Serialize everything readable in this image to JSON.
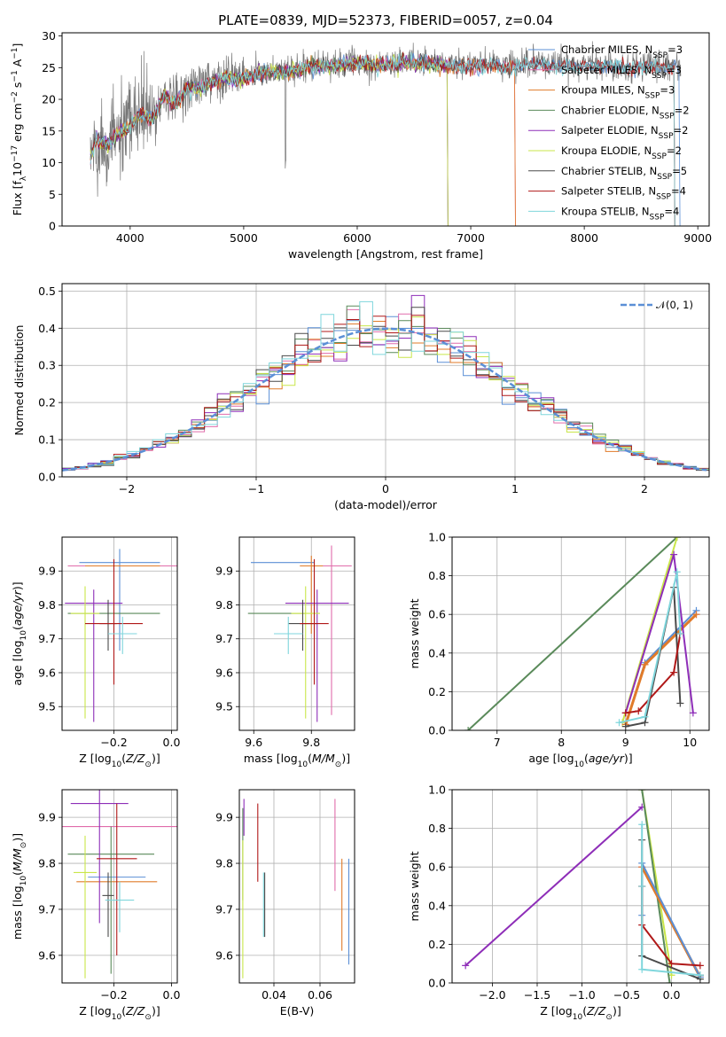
{
  "figure": {
    "title": "PLATE=0839, MJD=52373, FIBERID=0057, z=0.04"
  },
  "colors": {
    "chabrier_miles": "#5b8fd6",
    "salpeter_miles": "#e06cab",
    "kroupa_miles": "#e07b2a",
    "chabrier_elodie": "#5a8a5a",
    "salpeter_elodie": "#8e2eb8",
    "kroupa_elodie": "#c9e64a",
    "chabrier_stelib": "#4a4a4a",
    "salpeter_stelib": "#b01818",
    "kroupa_stelib": "#7fd6dc",
    "normal_curve": "#5b8fd6"
  },
  "chart_data": [
    {
      "id": "spectrum",
      "type": "line",
      "title": "PLATE=0839, MJD=52373, FIBERID=0057, z=0.04",
      "xlabel": "wavelength [Angstrom, rest frame]",
      "ylabel": "Flux [f_λ 10^-17 erg cm^-2 s^-1 A^-1]",
      "xlim": [
        3400,
        9100
      ],
      "ylim": [
        0,
        30.5
      ],
      "xticks": [
        4000,
        5000,
        6000,
        7000,
        8000,
        9000
      ],
      "yticks": [
        0,
        5,
        10,
        15,
        20,
        25,
        30
      ],
      "grid": false,
      "legend_position": "right",
      "data_continuum": {
        "x": [
          3650,
          3700,
          3800,
          3900,
          4000,
          4100,
          4200,
          4300,
          4400,
          4500,
          4600,
          4800,
          5000,
          5200,
          5400,
          5600,
          5800,
          6000,
          6200,
          6400,
          6600,
          6800,
          7000,
          7200,
          7400,
          7600,
          7800,
          8000,
          8200,
          8400,
          8600,
          8800
        ],
        "y": [
          11,
          14,
          13,
          15,
          16,
          18,
          17,
          21,
          19.5,
          22,
          22,
          23.5,
          23.5,
          24.5,
          24.5,
          25.5,
          25.5,
          26,
          25.5,
          26,
          26,
          25.5,
          25.5,
          25.5,
          25.3,
          25.8,
          25.5,
          25.5,
          25.5,
          25.2,
          25.5,
          25.3
        ]
      },
      "series": [
        {
          "name": "Chabrier MILES, N_SSP=3",
          "color_key": "chabrier_miles",
          "x_end": 8850
        },
        {
          "name": "Salpeter MILES, N_SSP=3",
          "color_key": "salpeter_miles",
          "x_end": 7400
        },
        {
          "name": "Kroupa MILES, N_SSP=3",
          "color_key": "kroupa_miles",
          "x_end": 7400
        },
        {
          "name": "Chabrier ELODIE, N_SSP=2",
          "color_key": "chabrier_elodie",
          "x_end": 6800
        },
        {
          "name": "Salpeter ELODIE, N_SSP=2",
          "color_key": "salpeter_elodie",
          "x_end": 6800
        },
        {
          "name": "Kroupa ELODIE, N_SSP=2",
          "color_key": "kroupa_elodie",
          "x_end": 6800
        },
        {
          "name": "Chabrier STELIB, N_SSP=5",
          "color_key": "chabrier_stelib",
          "x_end": 8800
        },
        {
          "name": "Salpeter STELIB, N_SSP=4",
          "color_key": "salpeter_stelib",
          "x_end": 8800
        },
        {
          "name": "Kroupa STELIB, N_SSP=4",
          "color_key": "kroupa_stelib",
          "x_end": 8800
        }
      ]
    },
    {
      "id": "residuals",
      "type": "line",
      "xlabel": "(data-model)/error",
      "ylabel": "Normed distribution",
      "xlim": [
        -2.5,
        2.5
      ],
      "ylim": [
        0,
        0.52
      ],
      "xticks": [
        -2,
        -1,
        0,
        1,
        2
      ],
      "yticks": [
        0.0,
        0.1,
        0.2,
        0.3,
        0.4,
        0.5
      ],
      "grid": true,
      "legend_position": "top-right",
      "legend_label": "𝒩(0, 1)",
      "bin_width": 0.1
    },
    {
      "id": "age_vs_z",
      "type": "scatter",
      "xlabel": "Z [log10(Z/Z⊙)]",
      "ylabel": "age [log10(age/yr)]",
      "xlim": [
        -0.38,
        0.02
      ],
      "ylim": [
        9.43,
        10.0
      ],
      "xticks": [
        -0.2,
        0.0
      ],
      "yticks": [
        9.5,
        9.6,
        9.7,
        9.8,
        9.9
      ],
      "grid": true,
      "points": [
        {
          "color_key": "chabrier_miles",
          "x": -0.18,
          "y": 9.925,
          "xerr": 0.14,
          "yerr": [
            0.26,
            0.04
          ]
        },
        {
          "color_key": "salpeter_miles",
          "x": -0.16,
          "y": 9.915,
          "xerr": 0.2,
          "yerr": [
            0.0,
            0.0
          ]
        },
        {
          "color_key": "kroupa_miles",
          "x": -0.17,
          "y": 9.915,
          "xerr": 0.13,
          "yerr": [
            0.0,
            0.0
          ]
        },
        {
          "color_key": "chabrier_elodie",
          "x": -0.2,
          "y": 9.775,
          "xerr": 0.16,
          "yerr": [
            0.0,
            0.0
          ]
        },
        {
          "color_key": "salpeter_elodie",
          "x": -0.27,
          "y": 9.805,
          "xerr": 0.1,
          "yerr": [
            0.35,
            0.04
          ]
        },
        {
          "color_key": "kroupa_elodie",
          "x": -0.3,
          "y": 9.775,
          "xerr": 0.05,
          "yerr": [
            0.31,
            0.08
          ]
        },
        {
          "color_key": "chabrier_stelib",
          "x": -0.22,
          "y": 9.745,
          "xerr": 0.03,
          "yerr": [
            0.08,
            0.07
          ]
        },
        {
          "color_key": "salpeter_stelib",
          "x": -0.2,
          "y": 9.745,
          "xerr": 0.1,
          "yerr": [
            0.18,
            0.19
          ]
        },
        {
          "color_key": "kroupa_stelib",
          "x": -0.17,
          "y": 9.715,
          "xerr": 0.05,
          "yerr": [
            0.06,
            0.05
          ]
        }
      ]
    },
    {
      "id": "age_vs_mass",
      "type": "scatter",
      "xlabel": "mass [log10(M/M⊙)]",
      "ylabel": "",
      "xlim": [
        9.55,
        9.95
      ],
      "ylim": [
        9.43,
        10.0
      ],
      "xticks": [
        9.6,
        9.8
      ],
      "yticks": [
        9.5,
        9.6,
        9.7,
        9.8,
        9.9
      ],
      "grid": true,
      "points": [
        {
          "color_key": "chabrier_miles",
          "x": 9.7,
          "y": 9.925,
          "xerr": 0.11,
          "yerr": [
            0.0,
            0.0
          ]
        },
        {
          "color_key": "salpeter_miles",
          "x": 9.87,
          "y": 9.915,
          "xerr": 0.07,
          "yerr": [
            0.44,
            0.06
          ]
        },
        {
          "color_key": "kroupa_miles",
          "x": 9.8,
          "y": 9.915,
          "xerr": 0.04,
          "yerr": [
            0.2,
            0.03
          ]
        },
        {
          "color_key": "chabrier_elodie",
          "x": 9.68,
          "y": 9.775,
          "xerr": 0.1,
          "yerr": [
            0.0,
            0.0
          ]
        },
        {
          "color_key": "salpeter_elodie",
          "x": 9.82,
          "y": 9.805,
          "xerr": 0.11,
          "yerr": [
            0.35,
            0.04
          ]
        },
        {
          "color_key": "kroupa_elodie",
          "x": 9.78,
          "y": 9.775,
          "xerr": 0.05,
          "yerr": [
            0.31,
            0.08
          ]
        },
        {
          "color_key": "chabrier_stelib",
          "x": 9.77,
          "y": 9.745,
          "xerr": 0.05,
          "yerr": [
            0.08,
            0.07
          ]
        },
        {
          "color_key": "salpeter_stelib",
          "x": 9.81,
          "y": 9.745,
          "xerr": 0.05,
          "yerr": [
            0.18,
            0.19
          ]
        },
        {
          "color_key": "kroupa_stelib",
          "x": 9.72,
          "y": 9.715,
          "xerr": 0.05,
          "yerr": [
            0.06,
            0.05
          ]
        }
      ]
    },
    {
      "id": "weight_vs_age",
      "type": "line",
      "xlabel": "age [log10(age/yr)]",
      "ylabel": "mass weight",
      "xlim": [
        6.3,
        10.3
      ],
      "ylim": [
        0,
        1.0
      ],
      "xticks": [
        7,
        8,
        9,
        10
      ],
      "yticks": [
        0.0,
        0.2,
        0.4,
        0.6,
        0.8,
        1.0
      ],
      "grid": true,
      "series": [
        {
          "color_key": "chabrier_elodie",
          "x": [
            6.55,
            9.8
          ],
          "y": [
            0.0,
            1.0
          ],
          "width": 2
        },
        {
          "color_key": "kroupa_elodie",
          "x": [
            8.95,
            9.8
          ],
          "y": [
            0.04,
            1.0
          ],
          "width": 2
        },
        {
          "color_key": "chabrier_miles",
          "x": [
            9.0,
            9.3,
            10.1
          ],
          "y": [
            0.03,
            0.35,
            0.62
          ],
          "width": 2
        },
        {
          "color_key": "salpeter_miles",
          "x": [
            9.0,
            9.3,
            10.1
          ],
          "y": [
            0.03,
            0.34,
            0.6
          ],
          "width": 2
        },
        {
          "color_key": "kroupa_miles",
          "x": [
            9.0,
            9.3,
            10.1
          ],
          "y": [
            0.03,
            0.34,
            0.6
          ],
          "width": 3
        },
        {
          "color_key": "salpeter_elodie",
          "x": [
            9.0,
            9.75,
            10.05
          ],
          "y": [
            0.09,
            0.91,
            0.09
          ],
          "width": 2
        },
        {
          "color_key": "chabrier_stelib",
          "x": [
            9.0,
            9.3,
            9.75,
            9.85
          ],
          "y": [
            0.02,
            0.04,
            0.74,
            0.14
          ],
          "width": 2
        },
        {
          "color_key": "salpeter_stelib",
          "x": [
            9.0,
            9.2,
            9.75,
            9.85
          ],
          "y": [
            0.09,
            0.1,
            0.3,
            0.5
          ],
          "width": 2
        },
        {
          "color_key": "kroupa_stelib",
          "x": [
            8.9,
            9.3,
            9.8,
            9.85
          ],
          "y": [
            0.04,
            0.07,
            0.82,
            0.5
          ],
          "width": 2
        }
      ]
    },
    {
      "id": "mass_vs_z",
      "type": "scatter",
      "xlabel": "Z [log10(Z/Z⊙)]",
      "ylabel": "mass [log10(M/M⊙)]",
      "xlim": [
        -0.38,
        0.02
      ],
      "ylim": [
        9.54,
        9.96
      ],
      "xticks": [
        -0.2,
        0.0
      ],
      "yticks": [
        9.6,
        9.7,
        9.8,
        9.9
      ],
      "grid": true,
      "points": [
        {
          "color_key": "chabrier_miles",
          "x": -0.19,
          "y": 9.77,
          "xerr": 0.1,
          "yerr": [
            0.0,
            0.0
          ]
        },
        {
          "color_key": "salpeter_miles",
          "x": -0.18,
          "y": 9.88,
          "xerr": 0.2,
          "yerr": [
            0.0,
            0.0
          ]
        },
        {
          "color_key": "kroupa_miles",
          "x": -0.19,
          "y": 9.76,
          "xerr": 0.14,
          "yerr": [
            0.0,
            0.0
          ]
        },
        {
          "color_key": "chabrier_elodie",
          "x": -0.21,
          "y": 9.82,
          "xerr": 0.15,
          "yerr": [
            0.26,
            0.06
          ]
        },
        {
          "color_key": "salpeter_elodie",
          "x": -0.25,
          "y": 9.93,
          "xerr": 0.1,
          "yerr": [
            0.26,
            0.03
          ]
        },
        {
          "color_key": "kroupa_elodie",
          "x": -0.3,
          "y": 9.78,
          "xerr": 0.04,
          "yerr": [
            0.23,
            0.08
          ]
        },
        {
          "color_key": "chabrier_stelib",
          "x": -0.22,
          "y": 9.73,
          "xerr": 0.02,
          "yerr": [
            0.09,
            0.05
          ]
        },
        {
          "color_key": "salpeter_stelib",
          "x": -0.19,
          "y": 9.81,
          "xerr": 0.07,
          "yerr": [
            0.21,
            0.12
          ]
        },
        {
          "color_key": "kroupa_stelib",
          "x": -0.18,
          "y": 9.72,
          "xerr": 0.05,
          "yerr": [
            0.07,
            0.04
          ]
        }
      ]
    },
    {
      "id": "mass_vs_ebv",
      "type": "scatter",
      "xlabel": "E(B-V)",
      "ylabel": "",
      "xlim": [
        0.025,
        0.075
      ],
      "ylim": [
        9.54,
        9.96
      ],
      "xticks": [
        0.04,
        0.06
      ],
      "yticks": [
        9.6,
        9.7,
        9.8,
        9.9
      ],
      "grid": true,
      "points": [
        {
          "color_key": "chabrier_miles",
          "x": 0.0725,
          "y": 9.7,
          "xerr": 0.0,
          "yerr": [
            0.12,
            0.11
          ]
        },
        {
          "color_key": "salpeter_miles",
          "x": 0.0665,
          "y": 9.84,
          "xerr": 0.0,
          "yerr": [
            0.1,
            0.1
          ]
        },
        {
          "color_key": "kroupa_miles",
          "x": 0.0695,
          "y": 9.71,
          "xerr": 0.0,
          "yerr": [
            0.1,
            0.1
          ]
        },
        {
          "color_key": "chabrier_elodie",
          "x": 0.0265,
          "y": 9.82,
          "xerr": 0.0,
          "yerr": [
            0.1,
            0.1
          ]
        },
        {
          "color_key": "salpeter_elodie",
          "x": 0.027,
          "y": 9.9,
          "xerr": 0.0,
          "yerr": [
            0.04,
            0.04
          ]
        },
        {
          "color_key": "kroupa_elodie",
          "x": 0.0265,
          "y": 9.7,
          "xerr": 0.0,
          "yerr": [
            0.15,
            0.15
          ]
        },
        {
          "color_key": "chabrier_stelib",
          "x": 0.036,
          "y": 9.71,
          "xerr": 0.0,
          "yerr": [
            0.07,
            0.07
          ]
        },
        {
          "color_key": "salpeter_stelib",
          "x": 0.033,
          "y": 9.84,
          "xerr": 0.0,
          "yerr": [
            0.08,
            0.09
          ]
        },
        {
          "color_key": "kroupa_stelib",
          "x": 0.0355,
          "y": 9.71,
          "xerr": 0.0,
          "yerr": [
            0.07,
            0.07
          ]
        }
      ]
    },
    {
      "id": "weight_vs_z",
      "type": "line",
      "xlabel": "Z [log10(Z/Z⊙)]",
      "ylabel": "mass weight",
      "xlim": [
        -2.45,
        0.42
      ],
      "ylim": [
        0,
        1.0
      ],
      "xticks": [
        -2.0,
        -1.5,
        -1.0,
        -0.5,
        0.0
      ],
      "yticks": [
        0.0,
        0.2,
        0.4,
        0.6,
        0.8,
        1.0
      ],
      "grid": true,
      "series": [
        {
          "color_key": "salpeter_elodie",
          "x": [
            -2.3,
            -0.33
          ],
          "y": [
            0.09,
            0.91
          ],
          "width": 2
        },
        {
          "color_key": "kroupa_elodie",
          "x": [
            -0.33,
            0.0
          ],
          "y": [
            1.0,
            0.04
          ],
          "width": 2
        },
        {
          "color_key": "chabrier_elodie",
          "x": [
            -0.33,
            -0.02
          ],
          "y": [
            1.0,
            0.0
          ],
          "width": 2
        },
        {
          "color_key": "salpeter_miles",
          "x": [
            -0.33,
            0.32
          ],
          "y": [
            0.6,
            0.03
          ],
          "width": 2
        },
        {
          "color_key": "kroupa_miles",
          "x": [
            -0.33,
            0.32
          ],
          "y": [
            0.6,
            0.03
          ],
          "width": 3
        },
        {
          "color_key": "chabrier_miles",
          "x": [
            -0.33,
            -0.33,
            0.32
          ],
          "y": [
            0.35,
            0.62,
            0.03
          ],
          "width": 2
        },
        {
          "color_key": "chabrier_stelib",
          "x": [
            -0.33,
            -0.33,
            0.32,
            0.32
          ],
          "y": [
            0.74,
            0.14,
            0.02,
            0.04
          ],
          "width": 2
        },
        {
          "color_key": "salpeter_stelib",
          "x": [
            -0.33,
            -0.33,
            0.0,
            0.32
          ],
          "y": [
            0.5,
            0.3,
            0.1,
            0.09
          ],
          "width": 2
        },
        {
          "color_key": "kroupa_stelib",
          "x": [
            -0.33,
            -0.33,
            -0.33,
            0.32
          ],
          "y": [
            0.82,
            0.5,
            0.07,
            0.04
          ],
          "width": 2
        }
      ]
    }
  ]
}
